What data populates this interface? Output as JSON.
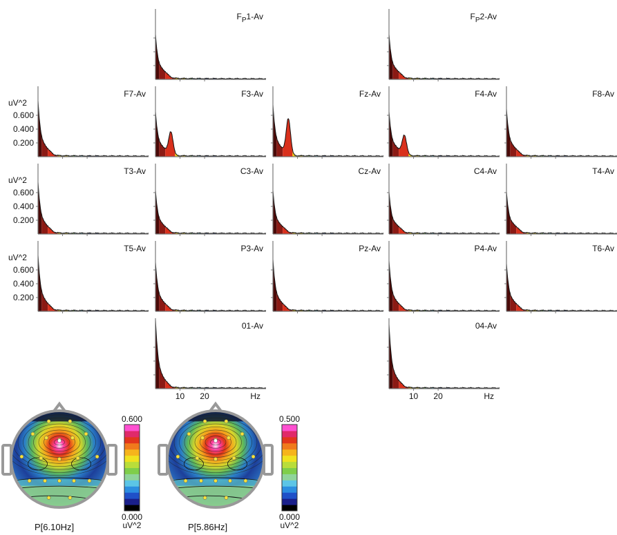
{
  "figure": {
    "spectra_x_unit": "Hz",
    "spectra_x_ticks": [
      "10",
      "20"
    ],
    "y_unit": "uV^2",
    "y_ticks": [
      "0.200",
      "0.400",
      "0.600"
    ]
  },
  "colors": {
    "band_delta_dark": "#4a0a08",
    "band_delta": "#8b1a14",
    "band_theta": "#d9301c",
    "band_alpha": "#f5d21c",
    "band_beta": "#7cc24a",
    "band_beta2": "#66c6d8",
    "band_gamma": "#1a3d8f",
    "band_high": "#e6e6e6"
  },
  "chart_data": [
    {
      "type": "area",
      "panels": [
        {
          "label": "FP1-Av",
          "label_prefix": "F",
          "label_sub": "P",
          "label_rest": "1-Av",
          "peak": 0.62,
          "theta_bump": 0.0
        },
        {
          "label": "FP2-Av",
          "label_prefix": "F",
          "label_sub": "P",
          "label_rest": "2-Av",
          "peak": 0.62,
          "theta_bump": 0.0
        },
        {
          "label": "F7-Av",
          "peak": 0.78,
          "theta_bump": 0.0
        },
        {
          "label": "F3-Av",
          "peak": 0.62,
          "theta_bump": 0.33
        },
        {
          "label": "Fz-Av",
          "peak": 0.72,
          "theta_bump": 0.52
        },
        {
          "label": "F4-Av",
          "peak": 0.62,
          "theta_bump": 0.28
        },
        {
          "label": "F8-Av",
          "peak": 0.66,
          "theta_bump": 0.0
        },
        {
          "label": "T3-Av",
          "peak": 0.72,
          "theta_bump": 0.0
        },
        {
          "label": "C3-Av",
          "peak": 0.6,
          "theta_bump": 0.0
        },
        {
          "label": "Cz-Av",
          "peak": 0.6,
          "theta_bump": 0.0
        },
        {
          "label": "C4-Av",
          "peak": 0.58,
          "theta_bump": 0.0
        },
        {
          "label": "T4-Av",
          "peak": 0.58,
          "theta_bump": 0.0
        },
        {
          "label": "T5-Av",
          "peak": 0.78,
          "theta_bump": 0.0
        },
        {
          "label": "P3-Av",
          "peak": 0.68,
          "theta_bump": 0.0
        },
        {
          "label": "Pz-Av",
          "peak": 0.72,
          "theta_bump": 0.0
        },
        {
          "label": "P4-Av",
          "peak": 0.7,
          "theta_bump": 0.0
        },
        {
          "label": "T6-Av",
          "peak": 0.66,
          "theta_bump": 0.0
        },
        {
          "label": "01-Av",
          "peak": 0.98,
          "theta_bump": 0.0
        },
        {
          "label": "04-Av",
          "peak": 0.9,
          "theta_bump": 0.0
        }
      ]
    },
    {
      "type": "heatmap",
      "maps": [
        {
          "caption": "P[6.10Hz]",
          "scale_max": "0.600",
          "scale_min": "0.000",
          "unit": "uV^2"
        },
        {
          "caption": "P[5.86Hz]",
          "scale_max": "0.500",
          "scale_min": "0.000",
          "unit": "uV^2"
        }
      ],
      "colorbar_colors": [
        "#000000",
        "#1a1f8a",
        "#1f50c8",
        "#2c8ee0",
        "#5cc5e6",
        "#8fd49a",
        "#7fce4a",
        "#b9dd3a",
        "#f0e21f",
        "#f6b41c",
        "#f07a1c",
        "#e2361c",
        "#e02a6a",
        "#ff4fd0"
      ]
    }
  ]
}
